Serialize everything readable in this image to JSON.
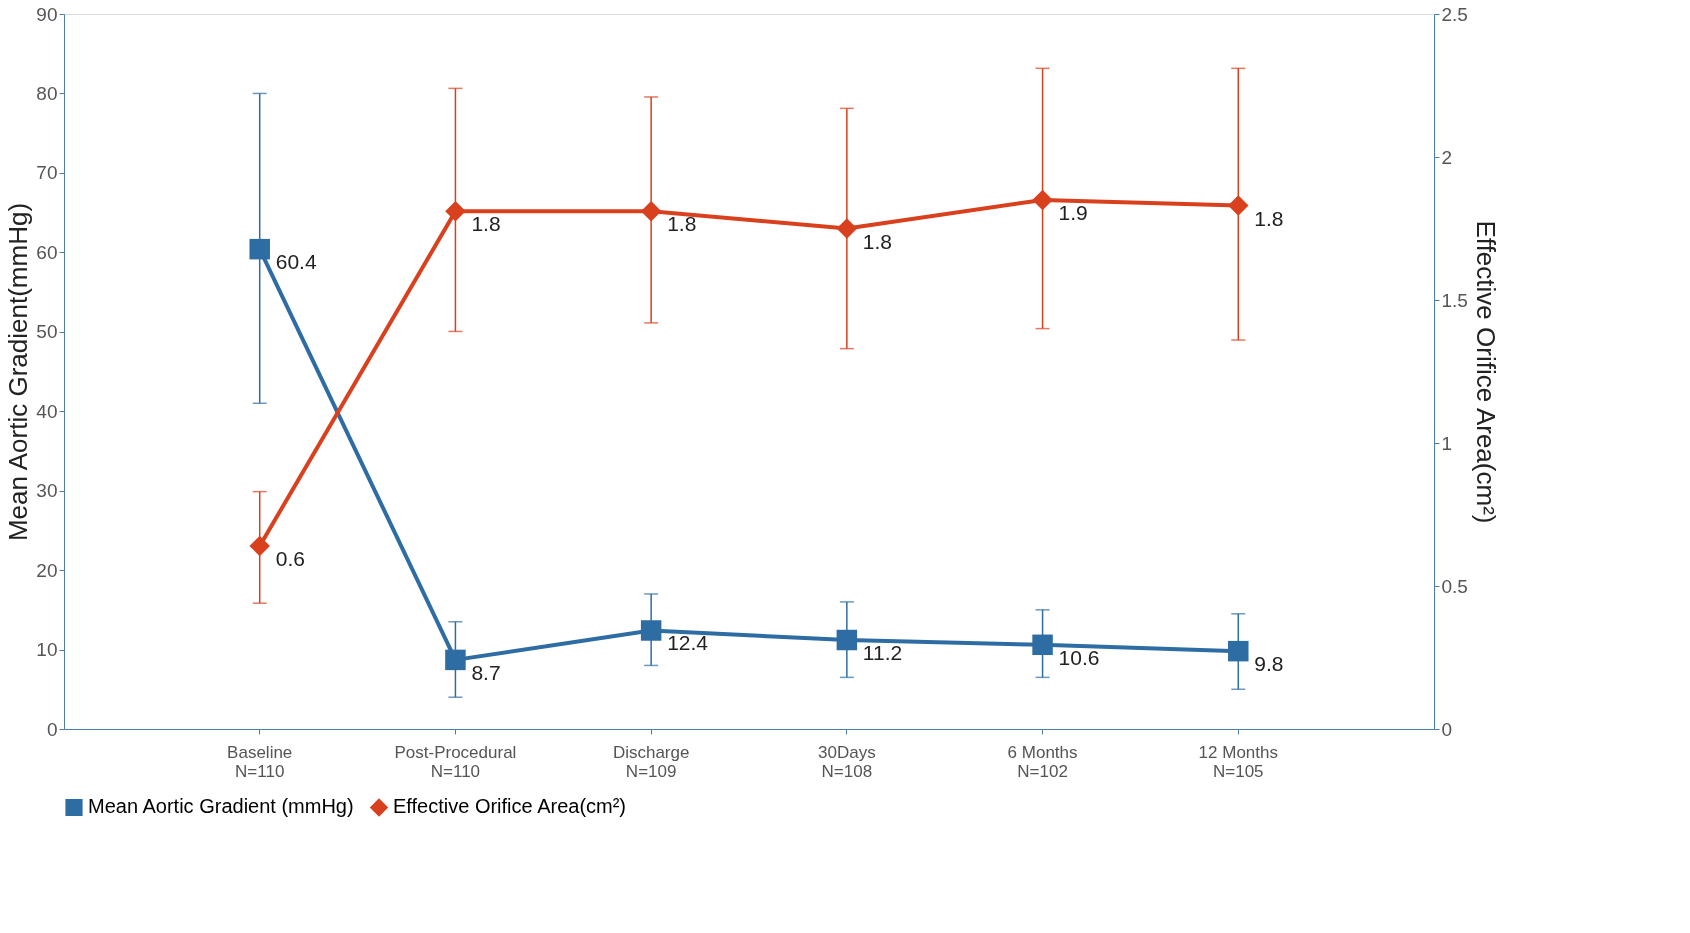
{
  "chart_data": {
    "type": "line",
    "categories": [
      "Baseline\nN=110",
      "Post-Procedural\nN=110",
      "Discharge\nN=109",
      "30Days\nN=108",
      "6 Months\nN=102",
      "12 Months\nN=105"
    ],
    "series": [
      {
        "name": "Mean Aortic Gradient (mmHg)",
        "color": "#2e6ca4",
        "marker": "square",
        "values": [
          60.4,
          8.7,
          12.4,
          11.2,
          10.6,
          9.8
        ],
        "value_labels": [
          "60.4",
          "8.7",
          "12.4",
          "11.2",
          "10.6",
          "9.8"
        ],
        "errors": [
          [
            41,
            80
          ],
          [
            4,
            13.5
          ],
          [
            8,
            17
          ],
          [
            6.5,
            16
          ],
          [
            6.5,
            15
          ],
          [
            5,
            14.5
          ]
        ]
      },
      {
        "name": "Effective Orifice Area(cm²)",
        "color": "#d9401e",
        "marker": "diamond",
        "axis": "y2",
        "values": [
          0.64,
          1.81,
          1.81,
          1.75,
          1.85,
          1.83
        ],
        "value_labels": [
          "0.6",
          "1.8",
          "1.8",
          "1.8",
          "1.9",
          "1.8"
        ],
        "errors": [
          [
            0.44,
            0.83
          ],
          [
            1.39,
            2.24
          ],
          [
            1.42,
            2.21
          ],
          [
            1.33,
            2.17
          ],
          [
            1.4,
            2.31
          ],
          [
            1.36,
            2.31
          ]
        ]
      }
    ],
    "ylabel": "Mean Aortic Gradient(mmHg)",
    "y2label": "Effective Orifice Area(cm²)",
    "ylim": [
      0,
      90
    ],
    "yticks": [
      0,
      10,
      20,
      30,
      40,
      50,
      60,
      70,
      80,
      90
    ],
    "y2lim": [
      0,
      2.5
    ],
    "y2ticks": [
      0,
      0.5,
      1,
      1.5,
      2,
      2.5
    ],
    "grid": false,
    "legend": "bottom"
  }
}
